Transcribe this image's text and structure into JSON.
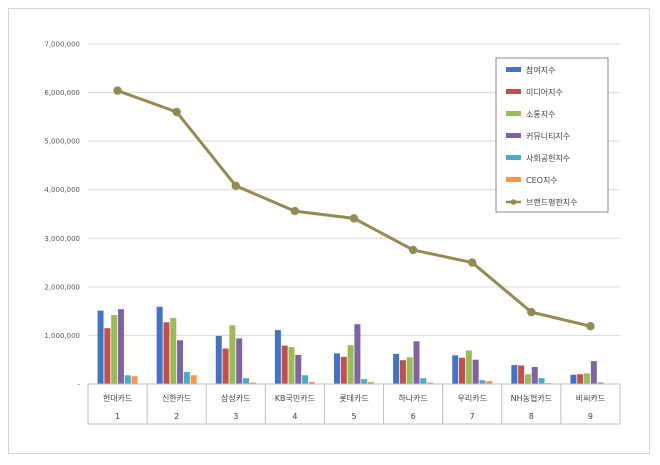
{
  "chart_data": {
    "type": "bar",
    "categories": [
      "현대카드",
      "신한카드",
      "삼성카드",
      "KB국민카드",
      "롯데카드",
      "하나카드",
      "우리카드",
      "NH농협카드",
      "비씨카드"
    ],
    "category_index": [
      "1",
      "2",
      "3",
      "4",
      "5",
      "6",
      "7",
      "8",
      "9"
    ],
    "series": [
      {
        "name": "참여지수",
        "color": "#4472c4",
        "values": [
          1510000,
          1590000,
          990000,
          1110000,
          630000,
          620000,
          590000,
          390000,
          190000
        ]
      },
      {
        "name": "미디어지수",
        "color": "#c0504d",
        "values": [
          1150000,
          1270000,
          730000,
          790000,
          560000,
          490000,
          540000,
          380000,
          200000
        ]
      },
      {
        "name": "소통지수",
        "color": "#9bbb59",
        "values": [
          1420000,
          1360000,
          1210000,
          760000,
          800000,
          550000,
          690000,
          200000,
          220000
        ]
      },
      {
        "name": "커뮤니티지수",
        "color": "#8064a2",
        "values": [
          1540000,
          900000,
          940000,
          600000,
          1230000,
          880000,
          500000,
          350000,
          470000
        ]
      },
      {
        "name": "사회공헌지수",
        "color": "#4bacc6",
        "values": [
          180000,
          250000,
          120000,
          180000,
          100000,
          120000,
          80000,
          120000,
          30000
        ]
      },
      {
        "name": "CEO지수",
        "color": "#f79646",
        "values": [
          160000,
          180000,
          30000,
          40000,
          40000,
          30000,
          60000,
          20000,
          10000
        ]
      }
    ],
    "line_series": {
      "name": "브랜드평판지수",
      "color": "#948a54",
      "values": [
        6040000,
        5600000,
        4080000,
        3560000,
        3410000,
        2760000,
        2500000,
        1480000,
        1190000
      ]
    },
    "y_ticks": [
      "7,000,000",
      "6,000,000",
      "5,000,000",
      "4,000,000",
      "3,000,000",
      "2,000,000",
      "1,000,000",
      "-"
    ],
    "ylim": [
      0,
      7000000
    ],
    "grid": true,
    "legend_position": "top-right"
  }
}
